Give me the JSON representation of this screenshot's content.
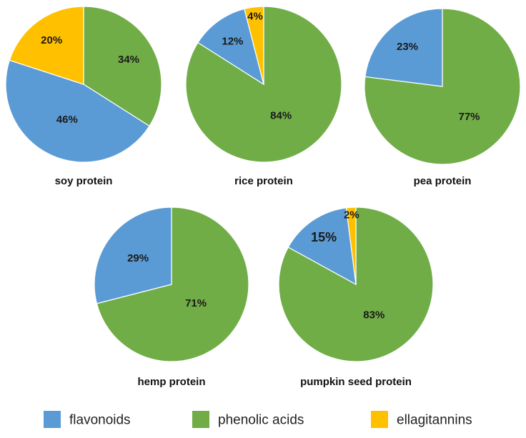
{
  "colors": {
    "flavonoids": "#5b9bd5",
    "phenolic acids": "#70ad47",
    "ellagitannins": "#ffc000"
  },
  "legend": {
    "placement": "bottom",
    "items": [
      "flavonoids",
      "phenolic acids",
      "ellagitannins"
    ]
  },
  "chart_data": [
    {
      "type": "pie",
      "title": "soy protein",
      "labels": [
        "phenolic acids",
        "flavonoids",
        "ellagitannins"
      ],
      "values": [
        34,
        46,
        20
      ],
      "value_labels": [
        "34%",
        "46%",
        "20%"
      ]
    },
    {
      "type": "pie",
      "title": "rice protein",
      "labels": [
        "phenolic acids",
        "flavonoids",
        "ellagitannins"
      ],
      "values": [
        84,
        12,
        4
      ],
      "value_labels": [
        "84%",
        "12%",
        "4%"
      ]
    },
    {
      "type": "pie",
      "title": "pea protein",
      "labels": [
        "phenolic acids",
        "flavonoids"
      ],
      "values": [
        77,
        23
      ],
      "value_labels": [
        "77%",
        "23%"
      ]
    },
    {
      "type": "pie",
      "title": "hemp protein",
      "labels": [
        "phenolic acids",
        "flavonoids"
      ],
      "values": [
        71,
        29
      ],
      "value_labels": [
        "71%",
        "29%"
      ]
    },
    {
      "type": "pie",
      "title": "pumpkin seed protein",
      "labels": [
        "phenolic acids",
        "flavonoids",
        "ellagitannins"
      ],
      "values": [
        83,
        15,
        2
      ],
      "value_labels": [
        "83%",
        "15%",
        "2%"
      ]
    }
  ]
}
